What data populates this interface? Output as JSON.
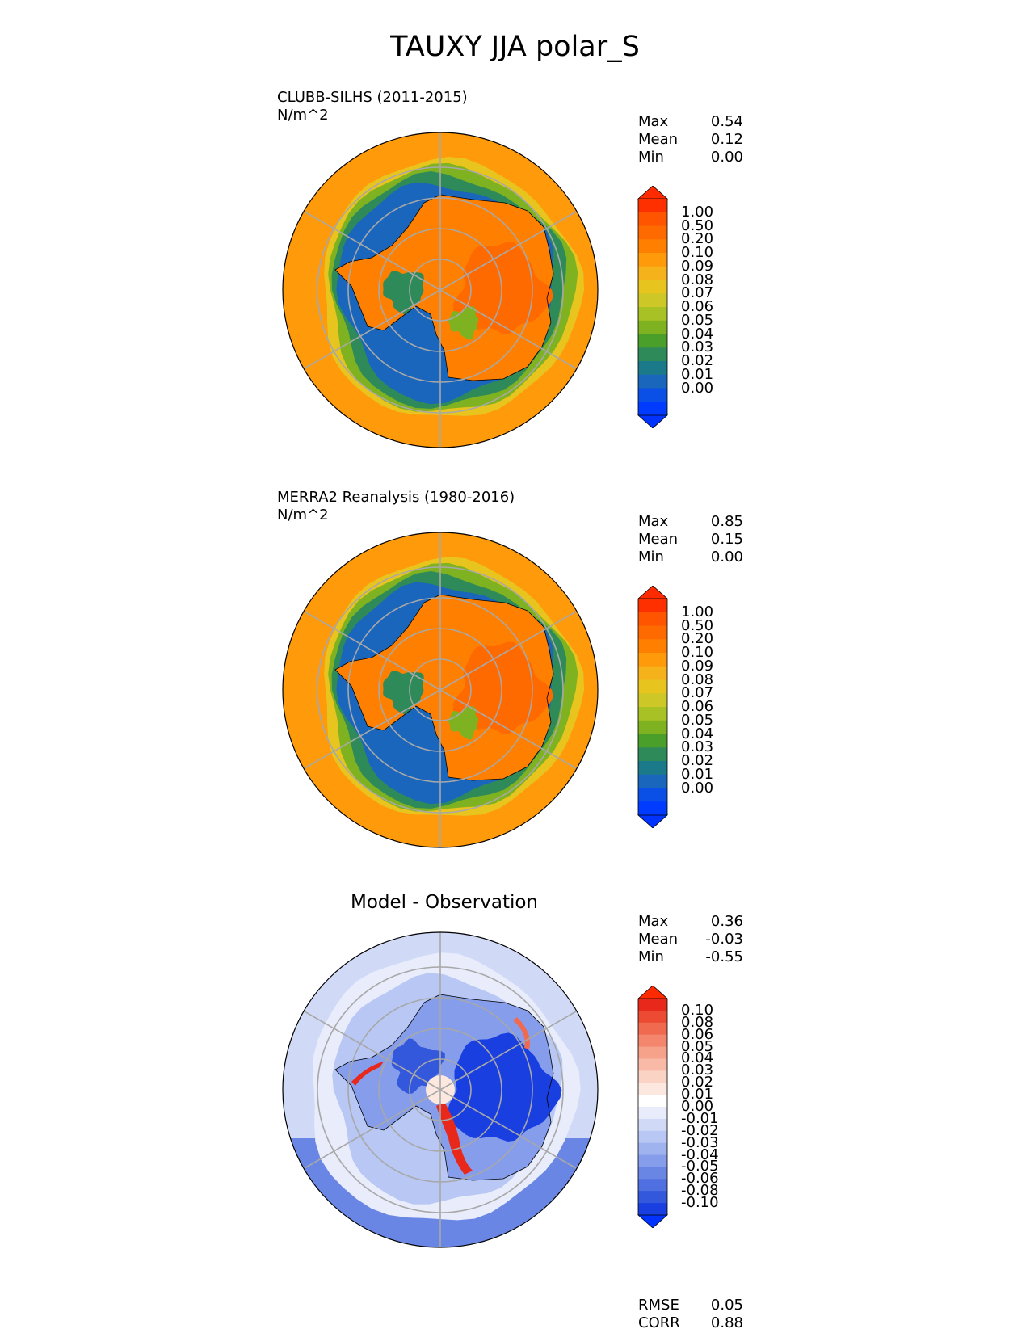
{
  "figure": {
    "title": "TAUXY JJA polar_S"
  },
  "panels": [
    {
      "title": "CLUBB-SILHS (2011-2015)",
      "units": "N/m^2",
      "stats": [
        {
          "label": "Max",
          "value": "0.54"
        },
        {
          "label": "Mean",
          "value": "0.12"
        },
        {
          "label": "Min",
          "value": "0.00"
        }
      ],
      "colorbar": {
        "labels": [
          "1.00",
          "0.50",
          "0.20",
          "0.10",
          "0.09",
          "0.08",
          "0.07",
          "0.06",
          "0.05",
          "0.04",
          "0.03",
          "0.02",
          "0.01",
          "0.00"
        ],
        "colors": [
          "#ff3000",
          "#ff5500",
          "#ff6a00",
          "#ff8000",
          "#ff9a0a",
          "#f6b21a",
          "#e8c41e",
          "#cdc827",
          "#a8c225",
          "#7fb220",
          "#4a9e2a",
          "#2f8a5a",
          "#1b7a8a",
          "#1a66bc",
          "#0a4fe6",
          "#003bff"
        ],
        "extend_top": "#ff2a00",
        "extend_bottom": "#0033ff"
      }
    },
    {
      "title": "MERRA2 Reanalysis (1980-2016)",
      "units": "N/m^2",
      "stats": [
        {
          "label": "Max",
          "value": "0.85"
        },
        {
          "label": "Mean",
          "value": "0.15"
        },
        {
          "label": "Min",
          "value": "0.00"
        }
      ],
      "colorbar": {
        "labels": [
          "1.00",
          "0.50",
          "0.20",
          "0.10",
          "0.09",
          "0.08",
          "0.07",
          "0.06",
          "0.05",
          "0.04",
          "0.03",
          "0.02",
          "0.01",
          "0.00"
        ],
        "colors": [
          "#ff3000",
          "#ff5500",
          "#ff6a00",
          "#ff8000",
          "#ff9a0a",
          "#f6b21a",
          "#e8c41e",
          "#cdc827",
          "#a8c225",
          "#7fb220",
          "#4a9e2a",
          "#2f8a5a",
          "#1b7a8a",
          "#1a66bc",
          "#0a4fe6",
          "#003bff"
        ],
        "extend_top": "#ff2a00",
        "extend_bottom": "#0033ff"
      }
    },
    {
      "title": "Model - Observation",
      "stats": [
        {
          "label": "Max",
          "value": "0.36"
        },
        {
          "label": "Mean",
          "value": "-0.03"
        },
        {
          "label": "Min",
          "value": "-0.55"
        }
      ],
      "metrics": [
        {
          "label": "RMSE",
          "value": "0.05"
        },
        {
          "label": "CORR",
          "value": "0.88"
        }
      ],
      "colorbar": {
        "labels": [
          "0.10",
          "0.08",
          "0.06",
          "0.05",
          "0.04",
          "0.03",
          "0.02",
          "0.01",
          "0.00",
          "-0.01",
          "-0.02",
          "-0.03",
          "-0.04",
          "-0.05",
          "-0.06",
          "-0.08",
          "-0.10"
        ],
        "colors": [
          "#e8281a",
          "#ec4a32",
          "#f06a50",
          "#f3866c",
          "#f6a18a",
          "#f8baa6",
          "#fbd3c5",
          "#fde8e0",
          "#ffffff",
          "#e8ecfb",
          "#d0daf7",
          "#b8c7f3",
          "#9fb3ee",
          "#859dea",
          "#6a86e5",
          "#506fe1",
          "#3358dc",
          "#1a3fe0"
        ],
        "extend_top": "#ff2a00",
        "extend_bottom": "#0033ff"
      }
    }
  ],
  "chart_data": [
    {
      "type": "heatmap",
      "title": "CLUBB-SILHS (2011-2015)",
      "subtitle": "N/m^2",
      "projection": "south polar stereographic",
      "stats": {
        "max": 0.54,
        "mean": 0.12,
        "min": 0.0
      },
      "colorbar_levels": [
        1.0,
        0.5,
        0.2,
        0.1,
        0.09,
        0.08,
        0.07,
        0.06,
        0.05,
        0.04,
        0.03,
        0.02,
        0.01,
        0.0
      ],
      "extend": "both"
    },
    {
      "type": "heatmap",
      "title": "MERRA2 Reanalysis (1980-2016)",
      "subtitle": "N/m^2",
      "projection": "south polar stereographic",
      "stats": {
        "max": 0.85,
        "mean": 0.15,
        "min": 0.0
      },
      "colorbar_levels": [
        1.0,
        0.5,
        0.2,
        0.1,
        0.09,
        0.08,
        0.07,
        0.06,
        0.05,
        0.04,
        0.03,
        0.02,
        0.01,
        0.0
      ],
      "extend": "both"
    },
    {
      "type": "heatmap",
      "title": "Model - Observation",
      "projection": "south polar stereographic",
      "stats": {
        "max": 0.36,
        "mean": -0.03,
        "min": -0.55,
        "rmse": 0.05,
        "corr": 0.88
      },
      "colorbar_levels": [
        0.1,
        0.08,
        0.06,
        0.05,
        0.04,
        0.03,
        0.02,
        0.01,
        0.0,
        -0.01,
        -0.02,
        -0.03,
        -0.04,
        -0.05,
        -0.06,
        -0.08,
        -0.1
      ],
      "extend": "both"
    }
  ]
}
